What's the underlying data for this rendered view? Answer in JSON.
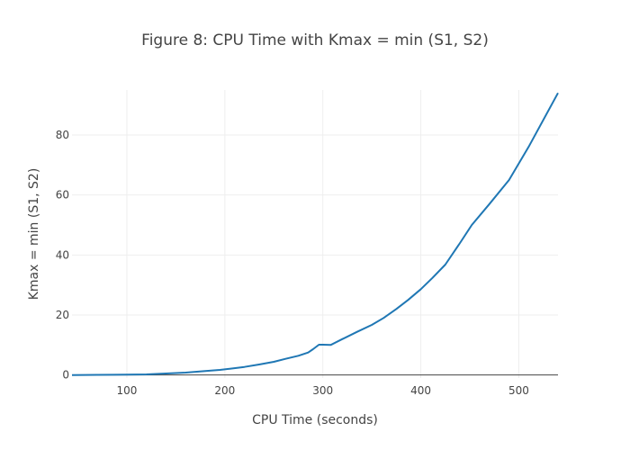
{
  "chart_data": {
    "type": "line",
    "title": "Figure 8: CPU Time with  Kmax = min (S1, S2)",
    "xlabel": "CPU Time (seconds)",
    "ylabel": "Kmax = min (S1, S2)",
    "xlim": [
      44,
      540
    ],
    "ylim": [
      -1,
      95
    ],
    "xticks": [
      100,
      200,
      300,
      400,
      500
    ],
    "yticks": [
      0,
      20,
      40,
      60,
      80
    ],
    "grid": true,
    "series": [
      {
        "name": "",
        "color": "#1f77b4",
        "x": [
          44,
          70,
          100,
          120,
          140,
          160,
          180,
          195,
          205,
          220,
          235,
          250,
          262,
          275,
          285,
          290,
          296,
          300,
          308,
          320,
          335,
          350,
          362,
          375,
          387,
          400,
          412,
          425,
          440,
          452,
          470,
          490,
          510,
          540
        ],
        "y": [
          0,
          0.05,
          0.1,
          0.2,
          0.5,
          0.8,
          1.3,
          1.7,
          2.1,
          2.7,
          3.5,
          4.4,
          5.4,
          6.4,
          7.5,
          8.6,
          10.1,
          10.1,
          10.0,
          12.0,
          14.4,
          16.7,
          19.0,
          22.0,
          25.0,
          28.6,
          32.4,
          36.8,
          44.0,
          50.0,
          57.0,
          65.0,
          76.0,
          94.0
        ]
      }
    ]
  }
}
